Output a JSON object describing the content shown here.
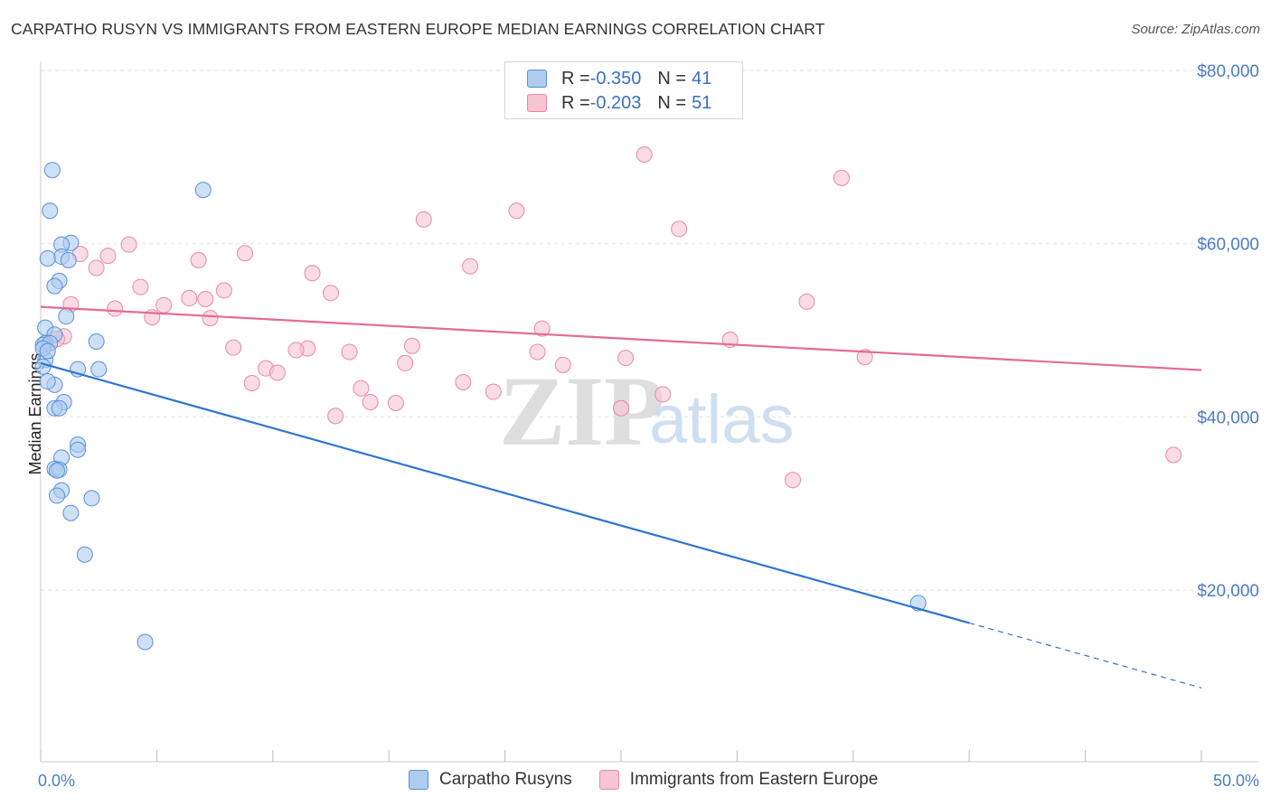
{
  "title": "CARPATHO RUSYN VS IMMIGRANTS FROM EASTERN EUROPE MEDIAN EARNINGS CORRELATION CHART",
  "source": "Source: ZipAtlas.com",
  "watermark": {
    "zip": "ZIP",
    "atlas": "atlas"
  },
  "legend": {
    "rows": [
      {
        "r_label": "R = ",
        "r_value": "-0.350",
        "n_label": "N = ",
        "n_value": "41"
      },
      {
        "r_label": "R = ",
        "r_value": "-0.203",
        "n_label": "N = ",
        "n_value": "51"
      }
    ]
  },
  "colors": {
    "blue_fill": "#aecbf0",
    "blue_stroke": "#5b8fd6",
    "blue_line": "#2f74d0",
    "pink_fill": "#f8c3d3",
    "pink_stroke": "#e889a8",
    "pink_line": "#e46b95",
    "tick_text": "#4a7cc7",
    "grid": "#e2e2e2"
  },
  "chart_data": {
    "type": "scatter",
    "title": "CARPATHO RUSYN VS IMMIGRANTS FROM EASTERN EUROPE MEDIAN EARNINGS CORRELATION CHART",
    "xlabel": "",
    "ylabel": "Median Earnings",
    "xlim": [
      0,
      50
    ],
    "ylim": [
      0,
      82000
    ],
    "x_tick_labels": [
      "0.0%",
      "50.0%"
    ],
    "y_ticks": [
      {
        "value": 20000,
        "label": "$20,000"
      },
      {
        "value": 40000,
        "label": "$40,000"
      },
      {
        "value": 60000,
        "label": "$60,000"
      },
      {
        "value": 80000,
        "label": "$80,000"
      }
    ],
    "series": [
      {
        "name": "Carpatho Rusyns",
        "r": -0.35,
        "n": 41,
        "trend": {
          "x0": 0,
          "y0": 46200,
          "x1": 40,
          "y1": 16200,
          "dash_to_x": 50,
          "dash_to_y": 8700
        },
        "points": [
          [
            0.5,
            68500
          ],
          [
            7.0,
            66200
          ],
          [
            0.4,
            63800
          ],
          [
            1.3,
            60100
          ],
          [
            0.9,
            59900
          ],
          [
            0.9,
            58500
          ],
          [
            1.2,
            58100
          ],
          [
            0.3,
            58300
          ],
          [
            0.8,
            55700
          ],
          [
            0.6,
            55100
          ],
          [
            1.1,
            51600
          ],
          [
            0.2,
            50300
          ],
          [
            0.6,
            49500
          ],
          [
            0.2,
            48500
          ],
          [
            0.1,
            48300
          ],
          [
            0.4,
            48500
          ],
          [
            2.4,
            48700
          ],
          [
            0.2,
            46600
          ],
          [
            0.1,
            45800
          ],
          [
            2.5,
            45500
          ],
          [
            1.6,
            45500
          ],
          [
            0.6,
            43700
          ],
          [
            0.3,
            44100
          ],
          [
            1.0,
            41700
          ],
          [
            0.6,
            41000
          ],
          [
            0.8,
            41000
          ],
          [
            1.6,
            36800
          ],
          [
            1.6,
            36200
          ],
          [
            0.9,
            35300
          ],
          [
            0.6,
            34000
          ],
          [
            0.8,
            33900
          ],
          [
            0.7,
            33800
          ],
          [
            0.9,
            31500
          ],
          [
            0.7,
            30900
          ],
          [
            2.2,
            30600
          ],
          [
            1.3,
            28900
          ],
          [
            1.9,
            24100
          ],
          [
            4.5,
            14000
          ],
          [
            37.8,
            18500
          ],
          [
            0.1,
            47900
          ],
          [
            0.3,
            47600
          ]
        ]
      },
      {
        "name": "Immigrants from Eastern Europe",
        "r": -0.203,
        "n": 51,
        "trend": {
          "x0": 0,
          "y0": 52700,
          "x1": 50,
          "y1": 45400
        },
        "points": [
          [
            26.0,
            70300
          ],
          [
            34.5,
            67600
          ],
          [
            20.5,
            63800
          ],
          [
            16.5,
            62800
          ],
          [
            27.5,
            61700
          ],
          [
            3.8,
            59900
          ],
          [
            8.8,
            58900
          ],
          [
            1.7,
            58800
          ],
          [
            2.9,
            58600
          ],
          [
            6.8,
            58100
          ],
          [
            18.5,
            57400
          ],
          [
            2.4,
            57200
          ],
          [
            11.7,
            56600
          ],
          [
            4.3,
            55000
          ],
          [
            7.9,
            54600
          ],
          [
            12.5,
            54300
          ],
          [
            6.4,
            53700
          ],
          [
            7.1,
            53600
          ],
          [
            5.3,
            52900
          ],
          [
            33.0,
            53300
          ],
          [
            1.3,
            53000
          ],
          [
            3.2,
            52500
          ],
          [
            4.8,
            51500
          ],
          [
            7.3,
            51400
          ],
          [
            21.6,
            50200
          ],
          [
            1.0,
            49300
          ],
          [
            0.7,
            49000
          ],
          [
            29.7,
            48900
          ],
          [
            16.0,
            48200
          ],
          [
            8.3,
            48000
          ],
          [
            11.5,
            47900
          ],
          [
            11.0,
            47700
          ],
          [
            13.3,
            47500
          ],
          [
            21.4,
            47500
          ],
          [
            35.5,
            46900
          ],
          [
            25.2,
            46800
          ],
          [
            15.7,
            46200
          ],
          [
            22.5,
            46000
          ],
          [
            9.7,
            45600
          ],
          [
            10.2,
            45100
          ],
          [
            9.1,
            43900
          ],
          [
            18.2,
            44000
          ],
          [
            13.8,
            43300
          ],
          [
            19.5,
            42900
          ],
          [
            26.8,
            42600
          ],
          [
            14.2,
            41700
          ],
          [
            15.3,
            41600
          ],
          [
            25.0,
            41000
          ],
          [
            12.7,
            40100
          ],
          [
            32.4,
            32700
          ],
          [
            48.8,
            35600
          ]
        ]
      }
    ]
  },
  "bottom_legend": {
    "series1": "Carpatho Rusyns",
    "series2": "Immigrants from Eastern Europe"
  }
}
